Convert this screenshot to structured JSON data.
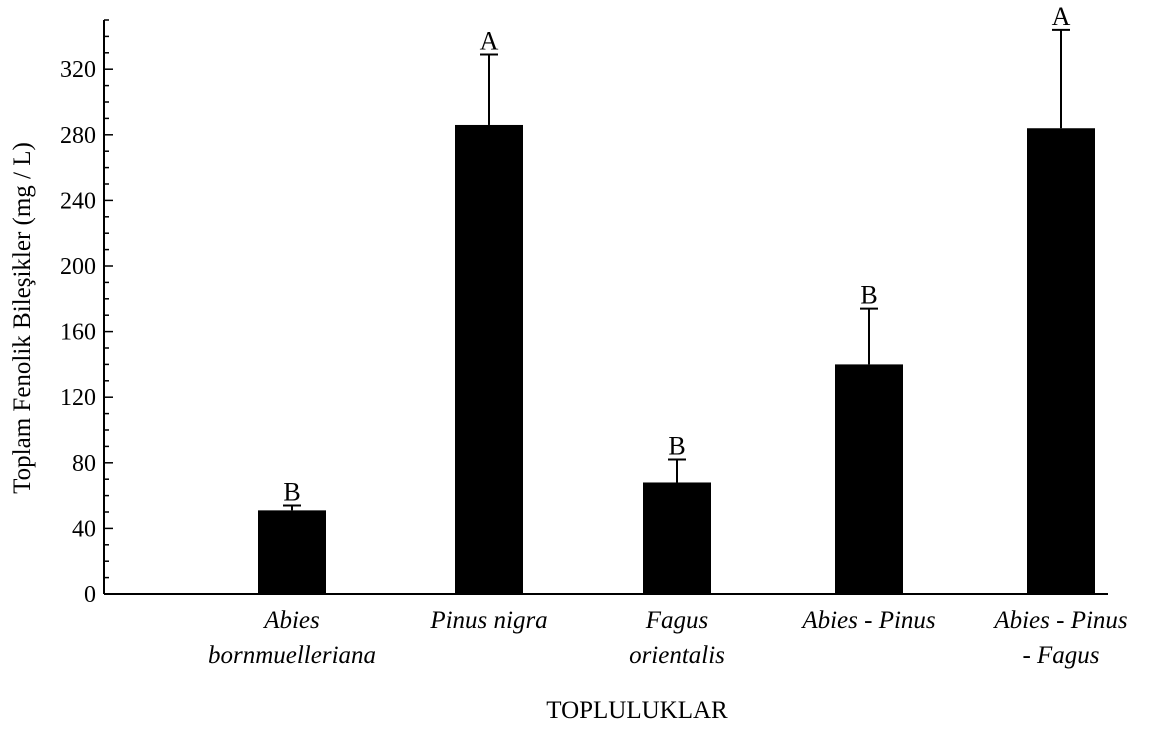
{
  "chart_data": {
    "type": "bar",
    "categories": [
      [
        "Abies",
        "bornmuelleriana"
      ],
      [
        "Pinus nigra"
      ],
      [
        "Fagus",
        "orientalis"
      ],
      [
        "Abies - Pinus"
      ],
      [
        "Abies - Pinus",
        "- Fagus"
      ]
    ],
    "values": [
      51,
      286,
      68,
      140,
      284
    ],
    "errors": [
      3,
      43,
      14,
      34,
      60
    ],
    "significance": [
      "B",
      "A",
      "B",
      "B",
      "A"
    ],
    "xlabel": "TOPLULUKLAR",
    "ylabel": "Toplam Fenolik Bileşikler (mg / L)",
    "ylim": [
      0,
      350
    ],
    "yticks": [
      "0",
      "40",
      "80",
      "120",
      "160",
      "200",
      "240",
      "280",
      "320"
    ],
    "bar_color": "#000000",
    "grid": false,
    "legend": "none"
  }
}
